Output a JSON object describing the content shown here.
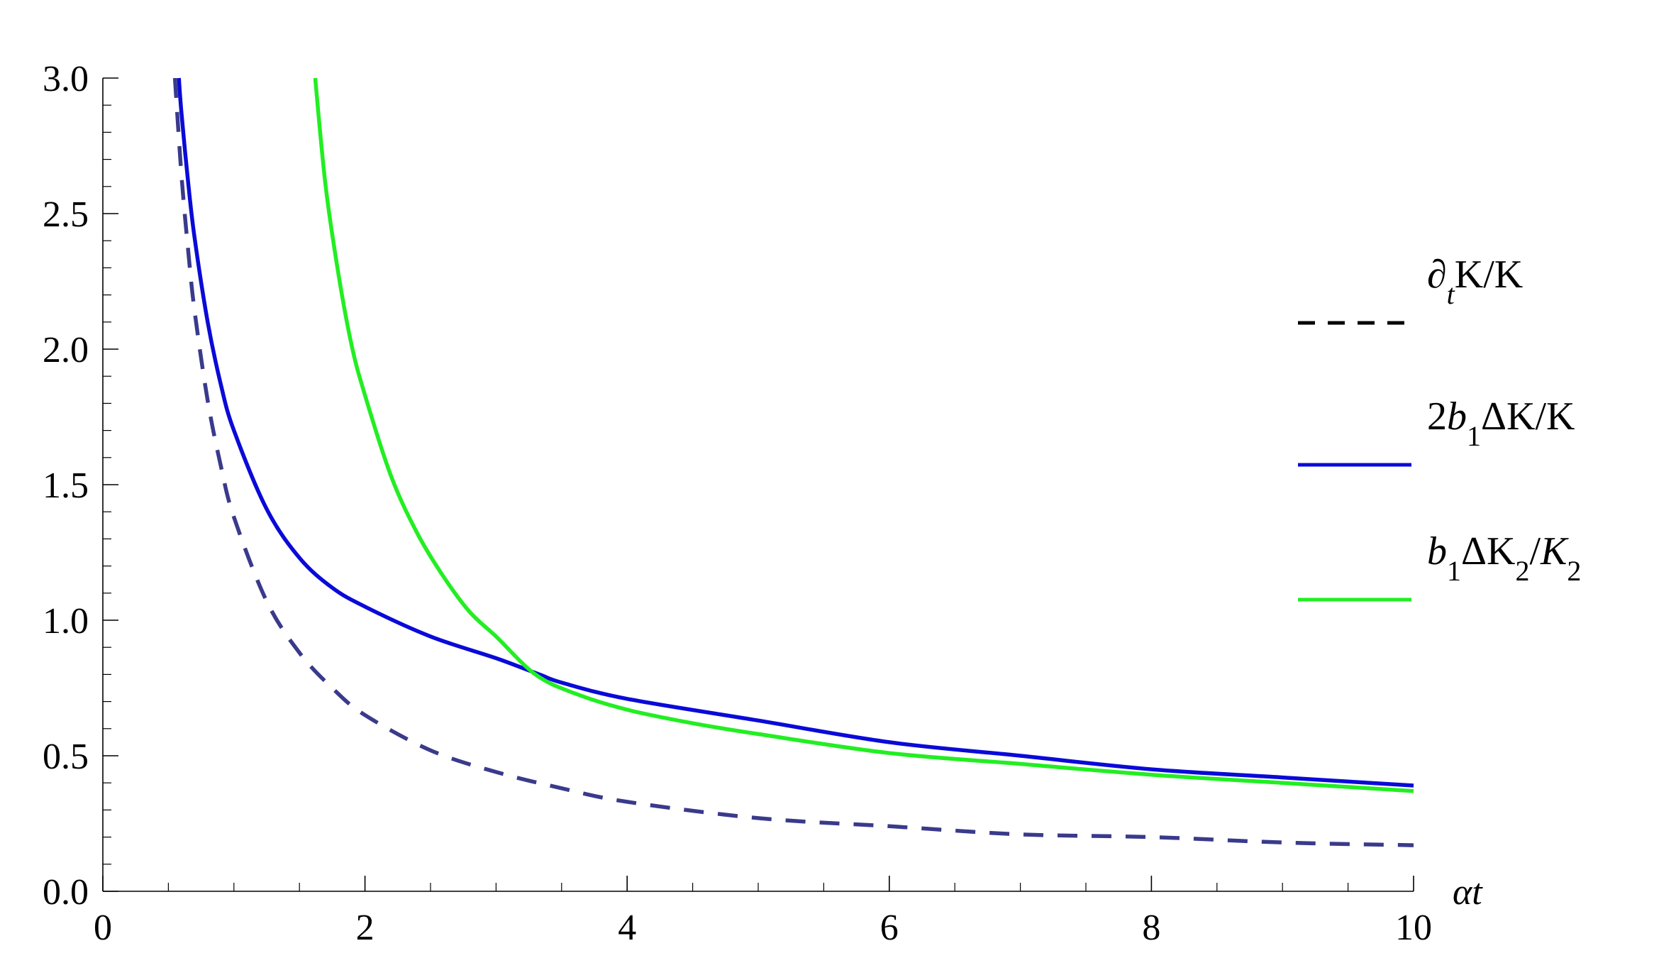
{
  "chart_data": {
    "type": "line",
    "xlabel": "αt",
    "ylabel": "",
    "xlim": [
      0,
      10
    ],
    "ylim": [
      0,
      3.0
    ],
    "x_ticks": [
      "0",
      "2",
      "4",
      "6",
      "8",
      "10"
    ],
    "y_ticks": [
      "0.0",
      "0.5",
      "1.0",
      "1.5",
      "2.0",
      "2.5",
      "3.0"
    ],
    "grid": false,
    "legend_position": "right",
    "series": [
      {
        "name": "∂tK/K",
        "color": "#3a3a8c",
        "dash": "dashed",
        "x": [
          0.55,
          0.6,
          0.65,
          0.7,
          0.8,
          0.9,
          1.0,
          1.25,
          1.5,
          1.75,
          2.0,
          2.5,
          3.0,
          3.5,
          4.0,
          5.0,
          6.0,
          7.0,
          8.0,
          9.0,
          10.0
        ],
        "y": [
          3.0,
          2.64,
          2.37,
          2.14,
          1.81,
          1.57,
          1.38,
          1.07,
          0.88,
          0.75,
          0.65,
          0.52,
          0.44,
          0.38,
          0.33,
          0.27,
          0.24,
          0.21,
          0.2,
          0.18,
          0.17
        ]
      },
      {
        "name": "2b1ΔK/K",
        "color": "#0a0ad8",
        "dash": "solid",
        "x": [
          0.58,
          0.6,
          0.65,
          0.7,
          0.8,
          0.9,
          1.0,
          1.25,
          1.5,
          1.75,
          2.0,
          2.5,
          3.0,
          3.33,
          3.5,
          4.0,
          5.0,
          6.0,
          7.0,
          8.0,
          9.0,
          10.0
        ],
        "y": [
          3.0,
          2.87,
          2.62,
          2.41,
          2.1,
          1.87,
          1.7,
          1.41,
          1.23,
          1.12,
          1.05,
          0.94,
          0.86,
          0.8,
          0.77,
          0.71,
          0.63,
          0.55,
          0.5,
          0.45,
          0.42,
          0.39
        ]
      },
      {
        "name": "b1ΔK2/K2",
        "color": "#22ee22",
        "dash": "solid",
        "x": [
          1.62,
          1.7,
          1.8,
          1.9,
          2.0,
          2.2,
          2.4,
          2.6,
          2.8,
          3.0,
          3.3,
          3.6,
          4.0,
          4.5,
          5.0,
          6.0,
          7.0,
          8.0,
          9.0,
          10.0
        ],
        "y": [
          3.0,
          2.6,
          2.27,
          2.01,
          1.83,
          1.53,
          1.32,
          1.16,
          1.03,
          0.94,
          0.8,
          0.73,
          0.67,
          0.62,
          0.58,
          0.51,
          0.47,
          0.43,
          0.4,
          0.37
        ]
      }
    ]
  }
}
